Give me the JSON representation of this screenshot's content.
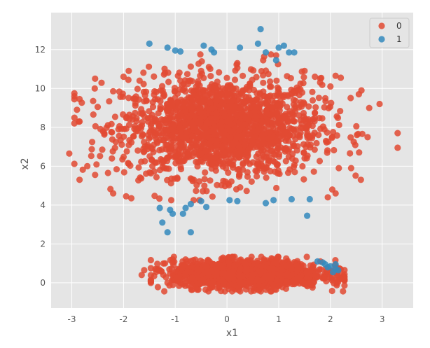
{
  "chart_data": {
    "type": "scatter",
    "title": "",
    "xlabel": "x1",
    "ylabel": "x2",
    "xlim": [
      -3.4,
      3.6
    ],
    "ylim": [
      -1.3,
      13.9
    ],
    "xticks": [
      -3,
      -2,
      -1,
      0,
      1,
      2,
      3
    ],
    "yticks": [
      0,
      2,
      4,
      6,
      8,
      10,
      12
    ],
    "grid": true,
    "background": "#e5e5e5",
    "legend": {
      "placement": "top-right",
      "entries": [
        "0",
        "1"
      ]
    },
    "series": [
      {
        "name": "0",
        "color": "#e24a33",
        "clusters": [
          {
            "shape": "blob",
            "center": [
              -0.1,
              8.0
            ],
            "spread": [
              0.95,
              1.25
            ],
            "count": 1800
          },
          {
            "shape": "band",
            "center": [
              0.4,
              0.45
            ],
            "spread": [
              0.72,
              0.34
            ],
            "count": 1600
          }
        ],
        "points": [
          [
            -3.05,
            6.65
          ],
          [
            -2.85,
            5.3
          ],
          [
            -2.95,
            9.75
          ],
          [
            -2.9,
            8.9
          ],
          [
            -2.85,
            9.45
          ],
          [
            -2.55,
            10.5
          ],
          [
            -2.5,
            9.05
          ],
          [
            -2.2,
            9.85
          ],
          [
            -2.0,
            10.6
          ],
          [
            -1.9,
            10.9
          ],
          [
            2.95,
            9.2
          ],
          [
            3.3,
            7.7
          ],
          [
            3.3,
            6.95
          ],
          [
            2.6,
            9.9
          ],
          [
            2.55,
            9.7
          ],
          [
            2.5,
            8.05
          ],
          [
            2.45,
            7.25
          ],
          [
            2.4,
            5.9
          ],
          [
            2.1,
            10.65
          ],
          [
            2.2,
            10.55
          ],
          [
            -2.3,
            5.65
          ],
          [
            -2.2,
            4.6
          ],
          [
            -1.95,
            4.45
          ],
          [
            -1.85,
            4.35
          ],
          [
            1.95,
            4.4
          ],
          [
            2.1,
            4.6
          ],
          [
            -2.55,
            5.55
          ],
          [
            -2.7,
            6.0
          ],
          [
            2.0,
            10.1
          ],
          [
            1.8,
            10.3
          ],
          [
            -0.5,
            10.9
          ],
          [
            0.7,
            11.45
          ],
          [
            0.85,
            11.75
          ],
          [
            0.95,
            11.7
          ],
          [
            0.2,
            11.3
          ],
          [
            -0.35,
            11.1
          ],
          [
            1.5,
            10.9
          ],
          [
            1.7,
            10.6
          ],
          [
            -1.2,
            10.8
          ],
          [
            -0.9,
            10.4
          ],
          [
            -1.6,
            0.65
          ],
          [
            -1.65,
            0.4
          ],
          [
            -1.2,
            1.0
          ],
          [
            -1.05,
            1.05
          ],
          [
            2.2,
            0.2
          ],
          [
            2.15,
            0.15
          ],
          [
            -1.15,
            0.0
          ],
          [
            1.0,
            -0.15
          ],
          [
            0.95,
            -0.35
          ],
          [
            -0.8,
            1.2
          ]
        ]
      },
      {
        "name": "1",
        "color": "#348abd",
        "points": [
          [
            -1.5,
            12.3
          ],
          [
            -1.15,
            12.1
          ],
          [
            -1.0,
            11.95
          ],
          [
            -0.9,
            11.9
          ],
          [
            -0.45,
            12.2
          ],
          [
            -0.25,
            11.85
          ],
          [
            -0.3,
            12.0
          ],
          [
            0.25,
            12.1
          ],
          [
            0.6,
            12.3
          ],
          [
            0.65,
            13.05
          ],
          [
            0.75,
            11.85
          ],
          [
            0.95,
            11.45
          ],
          [
            1.0,
            12.1
          ],
          [
            1.1,
            12.2
          ],
          [
            1.2,
            11.85
          ],
          [
            1.3,
            11.85
          ],
          [
            -1.3,
            3.85
          ],
          [
            -1.1,
            3.75
          ],
          [
            -1.25,
            3.1
          ],
          [
            -1.05,
            3.55
          ],
          [
            -0.85,
            3.55
          ],
          [
            -0.8,
            3.85
          ],
          [
            -0.7,
            4.05
          ],
          [
            -0.5,
            4.2
          ],
          [
            -0.4,
            3.9
          ],
          [
            -1.15,
            2.6
          ],
          [
            -0.7,
            2.6
          ],
          [
            0.05,
            4.25
          ],
          [
            0.2,
            4.2
          ],
          [
            0.75,
            4.1
          ],
          [
            0.9,
            4.25
          ],
          [
            1.25,
            4.3
          ],
          [
            1.6,
            4.3
          ],
          [
            1.55,
            3.45
          ],
          [
            1.85,
            1.05
          ],
          [
            1.9,
            0.95
          ],
          [
            2.0,
            0.85
          ],
          [
            2.1,
            0.95
          ],
          [
            2.1,
            0.7
          ],
          [
            1.95,
            0.8
          ],
          [
            2.15,
            0.65
          ],
          [
            1.75,
            1.1
          ],
          [
            2.05,
            0.55
          ]
        ]
      }
    ]
  }
}
